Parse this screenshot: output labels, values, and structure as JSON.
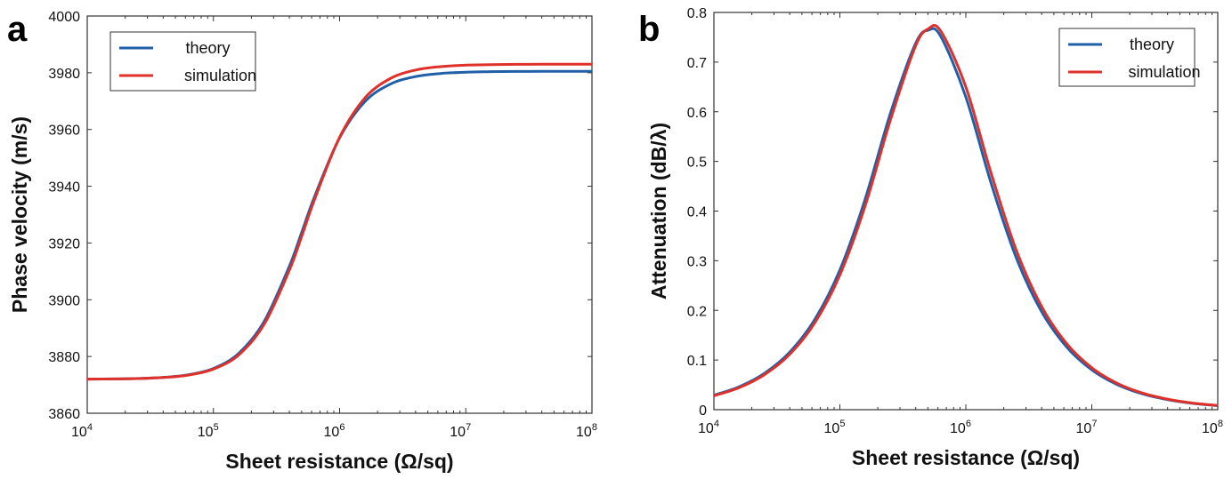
{
  "colors": {
    "theory": "#1f5fa8",
    "simulation": "#e0302a"
  },
  "chart_data": [
    {
      "panel_label": "a",
      "type": "line",
      "xlabel": "Sheet resistance (Ω/sq)",
      "ylabel": "Phase velocity (m/s)",
      "x_scale": "log",
      "xlim": [
        10000,
        100000000
      ],
      "ylim": [
        3860,
        4000
      ],
      "x_ticks": [
        10000,
        100000,
        1000000,
        10000000,
        100000000
      ],
      "x_tick_labels": [
        [
          "10",
          "4"
        ],
        [
          "10",
          "5"
        ],
        [
          "10",
          "6"
        ],
        [
          "10",
          "7"
        ],
        [
          "10",
          "8"
        ]
      ],
      "y_ticks": [
        3860,
        3880,
        3900,
        3920,
        3940,
        3960,
        3980,
        4000
      ],
      "y_tick_labels": [
        "3860",
        "3880",
        "3900",
        "3920",
        "3940",
        "3960",
        "3980",
        "4000"
      ],
      "grid": false,
      "legend_position": "top-left",
      "x": [
        10000,
        15849,
        25119,
        39811,
        63096,
        100000,
        158489,
        251189,
        398107,
        501187,
        630957,
        1000000,
        1584893,
        2511886,
        3981072,
        6309573,
        10000000,
        15848932,
        25118864,
        39810717,
        63095734,
        100000000
      ],
      "series": [
        {
          "name": "theory",
          "values": [
            3872.04,
            3872.1,
            3872.25,
            3872.62,
            3873.55,
            3875.8,
            3881.07,
            3892.22,
            3911.63,
            3923.77,
            3936.13,
            3957.07,
            3969.78,
            3975.96,
            3978.65,
            3979.75,
            3980.2,
            3980.38,
            3980.45,
            3980.48,
            3980.49,
            3980.5
          ]
        },
        {
          "name": "simulation",
          "values": [
            3872.04,
            3872.09,
            3872.23,
            3872.58,
            3873.44,
            3875.56,
            3880.53,
            3891.18,
            3910.21,
            3922.41,
            3935.12,
            3957.25,
            3971.09,
            3977.93,
            3980.93,
            3982.16,
            3982.67,
            3982.87,
            3982.95,
            3982.98,
            3982.99,
            3983.0
          ]
        }
      ]
    },
    {
      "panel_label": "b",
      "type": "line",
      "xlabel": "Sheet resistance (Ω/sq)",
      "ylabel": "Attenuation (dB/λ)",
      "x_scale": "log",
      "xlim": [
        10000,
        100000000
      ],
      "ylim": [
        0,
        0.8
      ],
      "x_ticks": [
        10000,
        100000,
        1000000,
        10000000,
        100000000
      ],
      "x_tick_labels": [
        [
          "10",
          "4"
        ],
        [
          "10",
          "5"
        ],
        [
          "10",
          "6"
        ],
        [
          "10",
          "7"
        ],
        [
          "10",
          "8"
        ]
      ],
      "y_ticks": [
        0,
        0.1,
        0.2,
        0.3,
        0.4,
        0.5,
        0.6,
        0.7,
        0.8
      ],
      "y_tick_labels": [
        "0",
        "0.1",
        "0.2",
        "0.3",
        "0.4",
        "0.5",
        "0.6",
        "0.7",
        "0.8"
      ],
      "grid": false,
      "legend_position": "top-right",
      "x": [
        10000,
        15849,
        25119,
        39811,
        63096,
        100000,
        158489,
        251189,
        398107,
        501187,
        630957,
        1000000,
        1584893,
        2511886,
        3981072,
        6309573,
        10000000,
        15848932,
        25118864,
        39810717,
        63095734,
        100000000
      ],
      "series": [
        {
          "name": "theory",
          "values": [
            0.0291,
            0.0462,
            0.0731,
            0.1154,
            0.1813,
            0.2813,
            0.4234,
            0.5958,
            0.7368,
            0.7642,
            0.7522,
            0.6296,
            0.4566,
            0.3063,
            0.1982,
            0.1264,
            0.0801,
            0.0506,
            0.032,
            0.0202,
            0.0127,
            0.008
          ]
        },
        {
          "name": "simulation",
          "values": [
            0.028,
            0.0444,
            0.0703,
            0.111,
            0.1745,
            0.2713,
            0.41,
            0.5823,
            0.7319,
            0.7667,
            0.7628,
            0.6499,
            0.4767,
            0.3215,
            0.2086,
            0.1331,
            0.0844,
            0.0534,
            0.0337,
            0.0213,
            0.0134,
            0.0085
          ]
        }
      ]
    }
  ]
}
